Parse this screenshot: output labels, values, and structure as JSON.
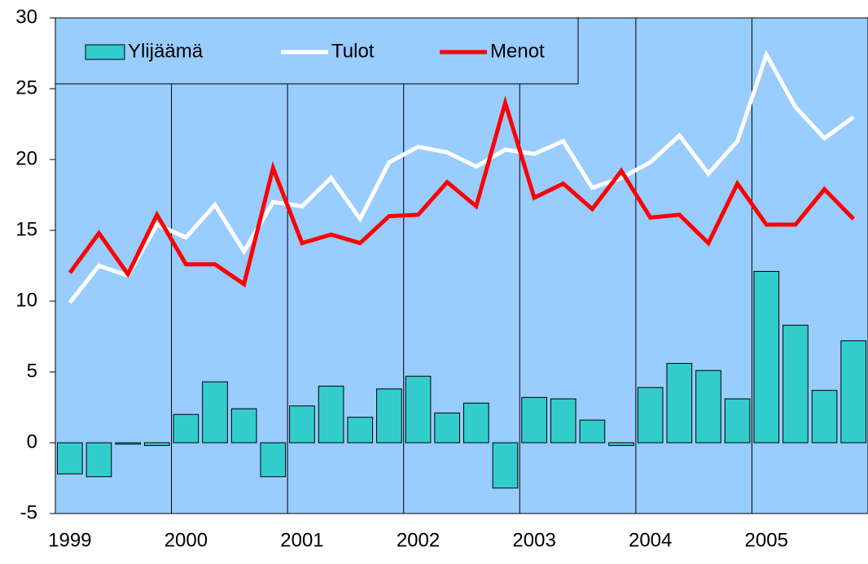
{
  "chart_data": {
    "type": "bar",
    "categories": [
      "1999",
      null,
      null,
      null,
      "2000",
      null,
      null,
      null,
      "2001",
      null,
      null,
      null,
      "2002",
      null,
      null,
      null,
      "2003",
      null,
      null,
      null,
      "2004",
      null,
      null,
      null,
      "2005",
      null,
      null,
      null
    ],
    "series": [
      {
        "name": "Ylijäämä",
        "type": "bar",
        "color": "#33cccc",
        "values": [
          -2.2,
          -2.4,
          -0.1,
          -0.2,
          2.0,
          4.3,
          2.4,
          -2.4,
          2.6,
          4.0,
          1.8,
          3.8,
          4.7,
          2.1,
          2.8,
          -3.2,
          3.2,
          3.1,
          1.6,
          -0.2,
          3.9,
          5.6,
          5.1,
          3.1,
          12.1,
          8.3,
          3.7,
          7.2
        ]
      },
      {
        "name": "Tulot",
        "type": "line",
        "color": "#ffffff",
        "values": [
          9.9,
          12.5,
          11.8,
          15.4,
          14.5,
          16.8,
          13.5,
          17.0,
          16.7,
          18.7,
          15.8,
          19.8,
          20.9,
          20.5,
          19.5,
          20.7,
          20.4,
          21.3,
          18.0,
          18.7,
          19.8,
          21.7,
          19.0,
          21.3,
          27.4,
          23.7,
          21.5,
          23.0
        ]
      },
      {
        "name": "Menot",
        "type": "line",
        "color": "#ff0000",
        "values": [
          12.0,
          14.8,
          11.9,
          16.1,
          12.6,
          12.6,
          11.2,
          19.4,
          14.1,
          14.7,
          14.1,
          16.0,
          16.1,
          18.4,
          16.7,
          24.0,
          17.3,
          18.3,
          16.5,
          19.2,
          15.9,
          16.1,
          14.1,
          18.3,
          15.4,
          15.4,
          17.9,
          15.8
        ]
      }
    ],
    "ylim": [
      -5,
      30
    ],
    "yticks": [
      -5,
      0,
      5,
      10,
      15,
      20,
      25,
      30
    ],
    "background": "#99ccff",
    "legend": "top-left"
  }
}
